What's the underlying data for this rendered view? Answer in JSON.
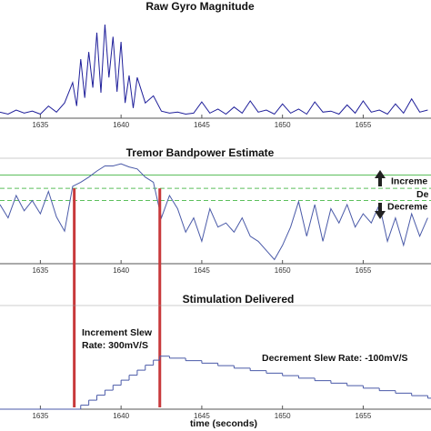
{
  "chart_data": [
    {
      "type": "line",
      "title": "Raw Gyro Magnitude",
      "color": "#1f1f9a",
      "x": [
        1632.5,
        1633,
        1633.5,
        1634,
        1634.5,
        1635,
        1635.5,
        1636,
        1636.5,
        1637,
        1637.25,
        1637.5,
        1637.75,
        1638,
        1638.25,
        1638.5,
        1638.75,
        1639,
        1639.25,
        1639.5,
        1639.75,
        1640,
        1640.25,
        1640.5,
        1640.75,
        1641,
        1641.5,
        1642,
        1642.5,
        1643,
        1643.5,
        1644,
        1644.5,
        1645,
        1645.5,
        1646,
        1646.5,
        1647,
        1647.5,
        1648,
        1648.5,
        1649,
        1649.5,
        1650,
        1650.5,
        1651,
        1651.5,
        1652,
        1652.5,
        1653,
        1653.5,
        1654,
        1654.5,
        1655,
        1655.5,
        1656,
        1656.5,
        1657,
        1657.5,
        1658,
        1658.5,
        1659
      ],
      "values": [
        0.6,
        0.4,
        0.8,
        0.5,
        0.7,
        0.4,
        1.2,
        0.6,
        1.5,
        3.5,
        1.2,
        5.8,
        2.0,
        6.5,
        3.0,
        8.4,
        2.5,
        9.2,
        4.0,
        8.0,
        2.6,
        7.5,
        1.5,
        4.2,
        1.0,
        4.0,
        1.5,
        2.2,
        0.7,
        0.5,
        0.6,
        0.4,
        0.5,
        1.6,
        0.5,
        0.9,
        0.4,
        1.1,
        0.5,
        1.7,
        0.6,
        0.8,
        0.4,
        1.4,
        0.5,
        0.9,
        0.4,
        1.6,
        0.6,
        0.7,
        0.4,
        1.3,
        0.5,
        1.7,
        0.6,
        0.8,
        0.4,
        1.4,
        0.5,
        1.9,
        0.6,
        0.8
      ],
      "xlim": [
        1632.5,
        1659.2
      ],
      "ylim": [
        0,
        10
      ],
      "xticks": [
        1635,
        1640,
        1645,
        1650,
        1655
      ]
    },
    {
      "type": "line",
      "title": "Tremor Bandpower Estimate",
      "color": "#4a5aa8",
      "x": [
        1632.5,
        1633,
        1633.5,
        1634,
        1634.5,
        1635,
        1635.5,
        1636,
        1636.5,
        1637,
        1637.5,
        1638,
        1638.5,
        1639,
        1639.5,
        1640,
        1640.5,
        1641,
        1641.5,
        1642,
        1642.5,
        1643,
        1643.5,
        1644,
        1644.5,
        1645,
        1645.5,
        1646,
        1646.5,
        1647,
        1647.5,
        1648,
        1648.5,
        1649,
        1649.5,
        1650,
        1650.5,
        1651,
        1651.5,
        1652,
        1652.5,
        1653,
        1653.5,
        1654,
        1654.5,
        1655,
        1655.5,
        1656,
        1656.5,
        1657,
        1657.5,
        1658,
        1658.5,
        1659
      ],
      "values": [
        5.8,
        4.5,
        6.7,
        5.2,
        6.2,
        4.9,
        7.1,
        4.6,
        3.2,
        7.6,
        8.0,
        8.5,
        9.1,
        9.6,
        9.6,
        9.8,
        9.5,
        9.3,
        8.5,
        8.0,
        4.5,
        6.7,
        5.4,
        3.1,
        4.5,
        2.2,
        5.4,
        3.6,
        4.0,
        3.1,
        4.5,
        2.7,
        2.2,
        1.3,
        0.4,
        1.8,
        3.6,
        6.1,
        2.7,
        5.8,
        2.2,
        5.4,
        4.0,
        5.8,
        3.6,
        4.9,
        4.0,
        5.8,
        2.2,
        4.5,
        1.8,
        4.9,
        2.7,
        4.5
      ],
      "xlim": [
        1632.5,
        1659.2
      ],
      "ylim": [
        0,
        10
      ],
      "xticks": [
        1635,
        1640,
        1645,
        1650,
        1655
      ],
      "thresholds": [
        {
          "value": 8.7,
          "label": "Increme",
          "dashed": false
        },
        {
          "value": 7.4,
          "label": "De",
          "dashed": true
        },
        {
          "value": 6.2,
          "label": "Decreme",
          "dashed": true
        }
      ],
      "threshold_color": "#5cbf5c",
      "markers": {
        "x": [
          1637.1,
          1642.4
        ],
        "color": "#c8393b"
      }
    },
    {
      "type": "step",
      "title": "Stimulation Delivered",
      "color": "#4a5aa8",
      "xlabel": "time (seconds)",
      "x": [
        1632.5,
        1637.1,
        1637.5,
        1638,
        1638.5,
        1639,
        1639.5,
        1640,
        1640.5,
        1641,
        1641.5,
        1642,
        1642.4,
        1643,
        1644,
        1645,
        1646,
        1647,
        1648,
        1649,
        1650,
        1651,
        1652,
        1653,
        1654,
        1655,
        1656,
        1657,
        1658,
        1659
      ],
      "values": [
        0,
        0,
        0.4,
        0.9,
        1.4,
        1.9,
        2.4,
        2.9,
        3.4,
        3.9,
        4.4,
        4.9,
        5.3,
        5.1,
        4.85,
        4.6,
        4.35,
        4.1,
        3.85,
        3.6,
        3.35,
        3.1,
        2.85,
        2.6,
        2.35,
        2.1,
        1.85,
        1.6,
        1.35,
        1.1
      ],
      "xlim": [
        1632.5,
        1659.2
      ],
      "ylim": [
        0,
        10
      ],
      "xticks": [
        1635,
        1640,
        1645,
        1650,
        1655
      ],
      "annotations": [
        "Increment Slew",
        "Rate: 300mV/S",
        "Decrement Slew Rate: -100mV/S"
      ]
    }
  ]
}
